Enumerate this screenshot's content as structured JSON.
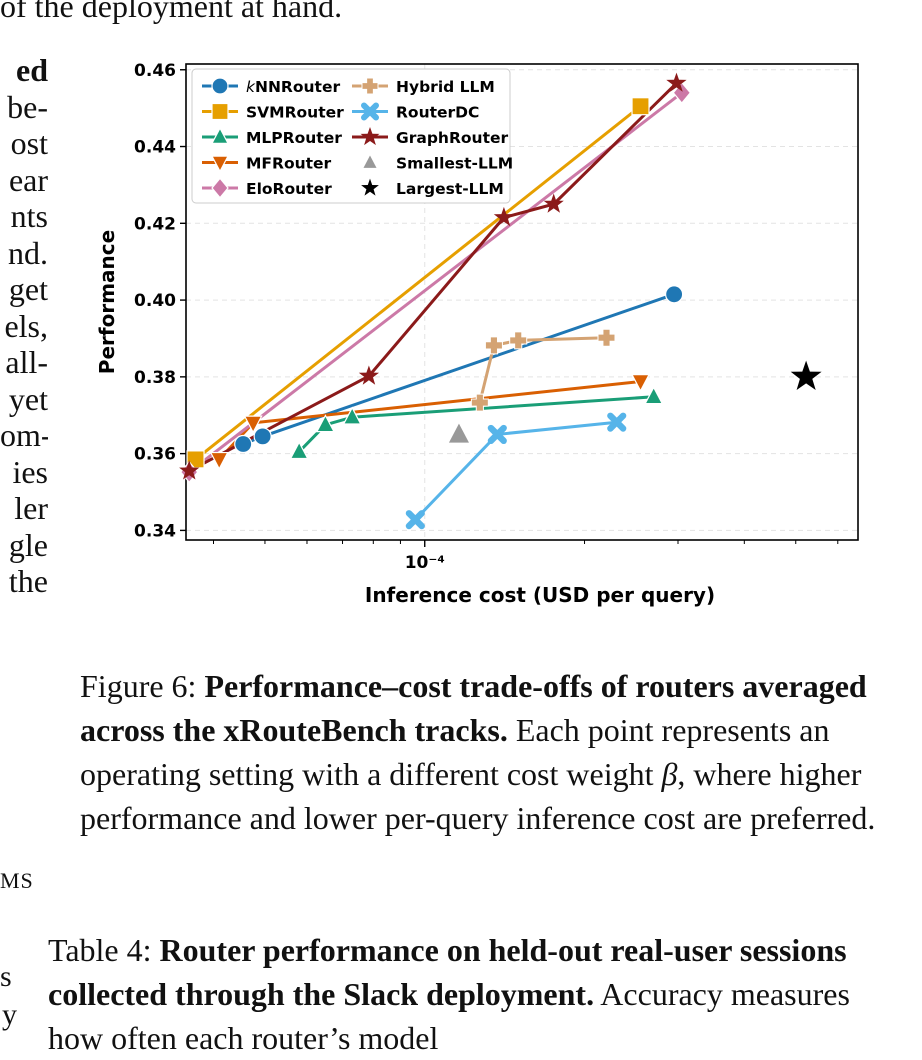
{
  "body_text": {
    "top_line": "of the deployment at hand.",
    "left_column": [
      "ed",
      "be-",
      "ost",
      "ear",
      "nts",
      "nd.",
      "get",
      "els,",
      "all-",
      "yet",
      "om-",
      "ies",
      "ler",
      "gle",
      "the"
    ],
    "left_fragments": [
      "MS",
      "s",
      "y"
    ]
  },
  "figure": {
    "label": "Figure 6:",
    "title": "Performance–cost trade-offs of routers averaged across the xRouteBench tracks.",
    "text_before": "Each point represents an operating setting with a different cost weight",
    "symbol": "β",
    "text_after": ", where higher performance and lower per-query inference cost are preferred."
  },
  "table": {
    "label": "Table 4:",
    "title": "Router performance on held-out real-user sessions collected through the Slack deployment.",
    "text": "Accuracy measures how often each router’s model"
  },
  "chart_data": {
    "type": "line",
    "xlabel": "Inference cost (USD per query)",
    "ylabel": "Performance",
    "x_scale": "log",
    "xlim": [
      3.55e-05,
      0.000655
    ],
    "ylim": [
      0.3375,
      0.4615
    ],
    "y_ticks": [
      0.34,
      0.36,
      0.38,
      0.4,
      0.42,
      0.44,
      0.46
    ],
    "x_tick_label": "10⁻⁴",
    "x_tick_value": 0.0001,
    "grid": true,
    "legend_position": "top-left",
    "series": [
      {
        "name": "kNNRouter",
        "name_prefix": "k",
        "name_rest": "NNRouter",
        "color": "#1f77b4",
        "marker": "circle",
        "line": true,
        "points": [
          [
            4.55e-05,
            0.3625
          ],
          [
            4.95e-05,
            0.3645
          ],
          [
            0.000295,
            0.4015
          ]
        ]
      },
      {
        "name": "SVMRouter",
        "color": "#e69f00",
        "marker": "square",
        "line": true,
        "points": [
          [
            3.7e-05,
            0.3585
          ],
          [
            0.000255,
            0.4505
          ]
        ]
      },
      {
        "name": "MLPRouter",
        "color": "#1a9e77",
        "marker": "triangle-up",
        "line": true,
        "points": [
          [
            5.8e-05,
            0.3605
          ],
          [
            6.5e-05,
            0.3675
          ],
          [
            7.3e-05,
            0.3695
          ],
          [
            0.00027,
            0.3748
          ]
        ]
      },
      {
        "name": "MFRouter",
        "color": "#d95f02",
        "marker": "triangle-down",
        "line": true,
        "points": [
          [
            4.1e-05,
            0.3585
          ],
          [
            4.75e-05,
            0.368
          ],
          [
            0.000255,
            0.3788
          ]
        ]
      },
      {
        "name": "EloRouter",
        "color": "#cc79a7",
        "marker": "diamond",
        "line": true,
        "points": [
          [
            3.6e-05,
            0.3552
          ],
          [
            0.000305,
            0.454
          ]
        ]
      },
      {
        "name": "Hybrid LLM",
        "color": "#d4a373",
        "marker": "plus",
        "line": true,
        "points": [
          [
            0.000127,
            0.3733
          ],
          [
            0.000135,
            0.3882
          ],
          [
            0.00015,
            0.3895
          ],
          [
            0.00022,
            0.3902
          ]
        ]
      },
      {
        "name": "RouterDC",
        "color": "#56b4e9",
        "marker": "x",
        "line": true,
        "points": [
          [
            9.6e-05,
            0.3428
          ],
          [
            0.000137,
            0.365
          ],
          [
            0.00023,
            0.3682
          ]
        ]
      },
      {
        "name": "GraphRouter",
        "color": "#8b1a1a",
        "marker": "star",
        "line": true,
        "points": [
          [
            3.6e-05,
            0.3555
          ],
          [
            7.85e-05,
            0.3802
          ],
          [
            0.000141,
            0.4215
          ],
          [
            0.000175,
            0.425
          ],
          [
            0.000298,
            0.4565
          ]
        ]
      },
      {
        "name": "Smallest-LLM",
        "color": "#999999",
        "marker": "triangle-up",
        "line": false,
        "points": [
          [
            0.000116,
            0.365
          ]
        ]
      },
      {
        "name": "Largest-LLM",
        "color": "#000000",
        "marker": "star",
        "line": false,
        "points": [
          [
            0.000523,
            0.38
          ]
        ]
      }
    ]
  }
}
